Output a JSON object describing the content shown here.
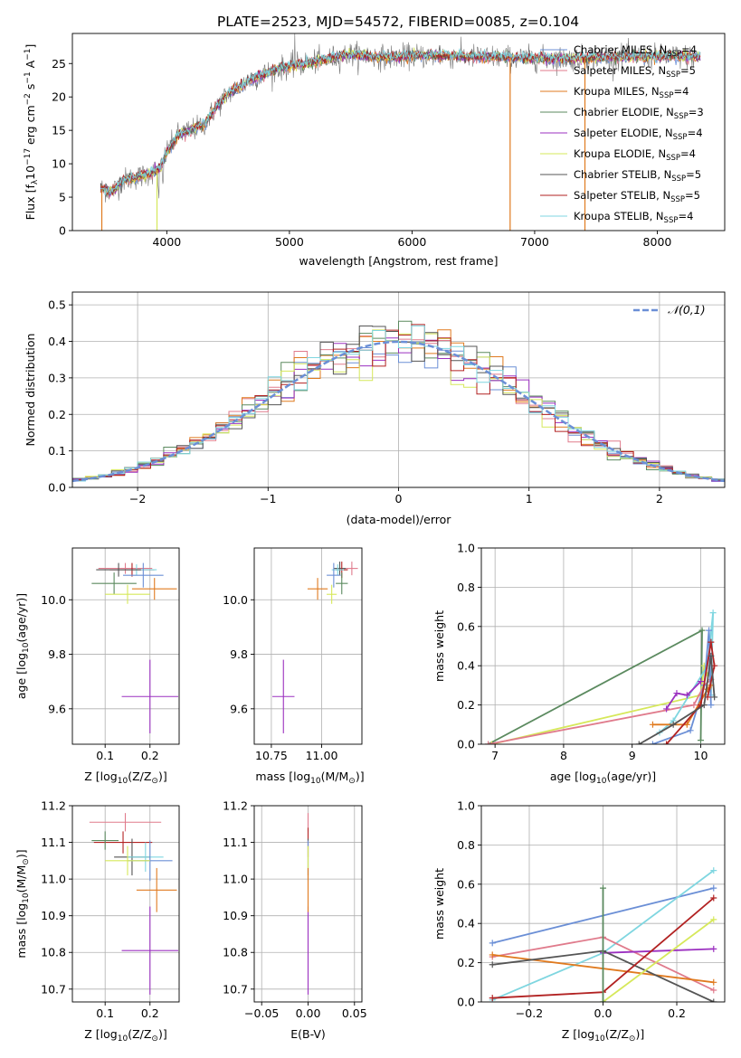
{
  "figure": {
    "title": "PLATE=2523, MJD=54572, FIBERID=0085, z=0.104"
  },
  "colors": {
    "chabrier_miles": "#6b8fd6",
    "salpeter_miles": "#e07b8c",
    "kroupa_miles": "#e07a1f",
    "chabrier_elodie": "#5b8a5f",
    "salpeter_elodie": "#9b30c0",
    "kroupa_elodie": "#d6e85a",
    "chabrier_stelib": "#555555",
    "salpeter_stelib": "#b22222",
    "kroupa_stelib": "#7fd6e0",
    "normal": "#6b8fd6",
    "grid": "#b0b0b0"
  },
  "chart_data": [
    {
      "id": "spectrum",
      "type": "line",
      "xlabel": "wavelength [Angstrom, rest frame]",
      "ylabel": "Flux [f_λ10^-17 erg cm^-2 s^-1 A^-1]",
      "xlim": [
        3230,
        8550
      ],
      "ylim": [
        0,
        29.5
      ],
      "xticks": [
        4000,
        5000,
        6000,
        7000,
        8000
      ],
      "yticks": [
        0,
        5,
        10,
        15,
        20,
        25
      ],
      "continuum": {
        "x": [
          3460,
          3550,
          3650,
          3750,
          3850,
          3950,
          4000,
          4100,
          4200,
          4300,
          4400,
          4500,
          4700,
          4900,
          5100,
          5300,
          5500,
          5800,
          6000,
          6300,
          6600,
          6900,
          7200,
          7500,
          7800,
          8100,
          8350
        ],
        "y": [
          6.3,
          5.8,
          7.6,
          7.9,
          8.5,
          9.3,
          11.8,
          14.5,
          15.0,
          15.8,
          18.4,
          20.5,
          22.7,
          24.2,
          24.9,
          25.6,
          26.4,
          25.9,
          26.2,
          26.1,
          26.0,
          25.8,
          25.7,
          25.9,
          26.0,
          26.1,
          26.0
        ]
      },
      "legend": [
        {
          "label": "Chabrier MILES, N",
          "sub": "SSP",
          "suffix": "=4"
        },
        {
          "label": "Salpeter MILES, N",
          "sub": "SSP",
          "suffix": "=5"
        },
        {
          "label": "Kroupa MILES, N",
          "sub": "SSP",
          "suffix": "=4"
        },
        {
          "label": "Chabrier ELODIE, N",
          "sub": "SSP",
          "suffix": "=3"
        },
        {
          "label": "Salpeter ELODIE, N",
          "sub": "SSP",
          "suffix": "=4"
        },
        {
          "label": "Kroupa ELODIE, N",
          "sub": "SSP",
          "suffix": "=4"
        },
        {
          "label": "Chabrier STELIB, N",
          "sub": "SSP",
          "suffix": "=5"
        },
        {
          "label": "Salpeter STELIB, N",
          "sub": "SSP",
          "suffix": "=5"
        },
        {
          "label": "Kroupa STELIB, N",
          "sub": "SSP",
          "suffix": "=4"
        }
      ]
    },
    {
      "id": "residuals",
      "type": "histogram",
      "xlabel": "(data-model)/error",
      "ylabel": "Normed distribution",
      "xlim": [
        -2.5,
        2.5
      ],
      "ylim": [
        0,
        0.535
      ],
      "xticks": [
        -2,
        -1,
        0,
        1,
        2
      ],
      "yticks": [
        0.0,
        0.1,
        0.2,
        0.3,
        0.4,
        0.5
      ],
      "legend": "𝒩(0,1)"
    },
    {
      "id": "age_vs_Z",
      "type": "errorbar",
      "xlabel": "Z [log10(Z/Z⊙)]",
      "ylabel": "age  [log10(age/yr)]",
      "xlim": [
        0.027,
        0.265
      ],
      "ylim": [
        9.47,
        10.19
      ],
      "xticks": [
        0.1,
        0.2
      ],
      "yticks": [
        9.6,
        9.8,
        10.0
      ],
      "points": [
        {
          "x": 0.2,
          "y": 9.645,
          "xerr": 0.063,
          "yerr": 0.135,
          "c": "salpeter_elodie"
        },
        {
          "x": 0.145,
          "y": 10.115,
          "xerr": 0.06,
          "yerr": 0.02,
          "c": "salpeter_miles"
        },
        {
          "x": 0.16,
          "y": 10.11,
          "xerr": 0.05,
          "yerr": 0.025,
          "c": "salpeter_stelib"
        },
        {
          "x": 0.17,
          "y": 10.11,
          "xerr": 0.045,
          "yerr": 0.02,
          "c": "kroupa_stelib"
        },
        {
          "x": 0.185,
          "y": 10.09,
          "xerr": 0.045,
          "yerr": 0.045,
          "c": "chabrier_miles"
        },
        {
          "x": 0.13,
          "y": 10.11,
          "xerr": 0.05,
          "yerr": 0.025,
          "c": "chabrier_stelib"
        },
        {
          "x": 0.12,
          "y": 10.06,
          "xerr": 0.05,
          "yerr": 0.04,
          "c": "chabrier_elodie"
        },
        {
          "x": 0.21,
          "y": 10.04,
          "xerr": 0.05,
          "yerr": 0.04,
          "c": "kroupa_miles"
        },
        {
          "x": 0.15,
          "y": 10.02,
          "xerr": 0.05,
          "yerr": 0.035,
          "c": "kroupa_elodie"
        }
      ]
    },
    {
      "id": "age_vs_mass",
      "type": "errorbar",
      "xlabel": "mass [log10(M/M⊙)]",
      "ylabel": "",
      "xlim": [
        10.665,
        11.2
      ],
      "ylim": [
        9.47,
        10.19
      ],
      "xticks": [
        10.75,
        11.0
      ],
      "xticklabels": [
        "10.75",
        "11.00"
      ],
      "yticks": [
        9.6,
        9.8,
        10.0
      ],
      "points": [
        {
          "x": 10.81,
          "y": 9.645,
          "xerr": 0.055,
          "yerr": 0.135,
          "c": "salpeter_elodie"
        },
        {
          "x": 11.15,
          "y": 10.115,
          "xerr": 0.03,
          "yerr": 0.025,
          "c": "salpeter_miles"
        },
        {
          "x": 11.09,
          "y": 10.115,
          "xerr": 0.03,
          "yerr": 0.025,
          "c": "chabrier_stelib"
        },
        {
          "x": 11.1,
          "y": 10.11,
          "xerr": 0.03,
          "yerr": 0.03,
          "c": "salpeter_stelib"
        },
        {
          "x": 11.08,
          "y": 10.11,
          "xerr": 0.03,
          "yerr": 0.02,
          "c": "kroupa_stelib"
        },
        {
          "x": 11.06,
          "y": 10.09,
          "xerr": 0.035,
          "yerr": 0.045,
          "c": "chabrier_miles"
        },
        {
          "x": 11.1,
          "y": 10.06,
          "xerr": 0.03,
          "yerr": 0.04,
          "c": "chabrier_elodie"
        },
        {
          "x": 10.98,
          "y": 10.04,
          "xerr": 0.05,
          "yerr": 0.04,
          "c": "kroupa_miles"
        },
        {
          "x": 11.05,
          "y": 10.02,
          "xerr": 0.025,
          "yerr": 0.035,
          "c": "kroupa_elodie"
        }
      ]
    },
    {
      "id": "mass_vs_Z",
      "type": "errorbar",
      "xlabel": "Z [log10(Z/Z⊙)]",
      "ylabel": "mass [log10(M/M⊙)]",
      "xlim": [
        0.027,
        0.265
      ],
      "ylim": [
        10.665,
        11.2
      ],
      "xticks": [
        0.1,
        0.2
      ],
      "yticks": [
        10.7,
        10.8,
        10.9,
        11.0,
        11.1,
        11.2
      ],
      "points": [
        {
          "x": 0.2,
          "y": 10.805,
          "xerr": 0.063,
          "yerr": 0.12,
          "c": "salpeter_elodie"
        },
        {
          "x": 0.145,
          "y": 11.155,
          "xerr": 0.08,
          "yerr": 0.025,
          "c": "salpeter_miles"
        },
        {
          "x": 0.14,
          "y": 11.1,
          "xerr": 0.065,
          "yerr": 0.03,
          "c": "salpeter_stelib"
        },
        {
          "x": 0.1,
          "y": 11.105,
          "xerr": 0.03,
          "yerr": 0.025,
          "c": "chabrier_elodie"
        },
        {
          "x": 0.16,
          "y": 11.06,
          "xerr": 0.04,
          "yerr": 0.05,
          "c": "chabrier_stelib"
        },
        {
          "x": 0.19,
          "y": 11.06,
          "xerr": 0.04,
          "yerr": 0.04,
          "c": "kroupa_stelib"
        },
        {
          "x": 0.2,
          "y": 11.05,
          "xerr": 0.05,
          "yerr": 0.055,
          "c": "chabrier_miles"
        },
        {
          "x": 0.15,
          "y": 11.05,
          "xerr": 0.05,
          "yerr": 0.04,
          "c": "kroupa_elodie"
        },
        {
          "x": 0.215,
          "y": 10.97,
          "xerr": 0.045,
          "yerr": 0.06,
          "c": "kroupa_miles"
        }
      ]
    },
    {
      "id": "mass_vs_ebv",
      "type": "errorbar",
      "xlabel": "E(B-V)",
      "ylabel": "",
      "xlim": [
        -0.058,
        0.058
      ],
      "ylim": [
        10.665,
        11.2
      ],
      "xticks": [
        -0.05,
        0.0,
        0.05
      ],
      "xticklabels": [
        "−0.05",
        "0.00",
        "0.05"
      ],
      "yticks": [
        10.7,
        10.8,
        10.9,
        11.0,
        11.1,
        11.2
      ],
      "points": [
        {
          "x": 0.0,
          "y": 10.805,
          "xerr": 0,
          "yerr": 0.12,
          "c": "salpeter_elodie"
        },
        {
          "x": 0.0,
          "y": 11.155,
          "xerr": 0,
          "yerr": 0.025,
          "c": "salpeter_miles"
        },
        {
          "x": 0.0,
          "y": 11.1,
          "xerr": 0,
          "yerr": 0.04,
          "c": "salpeter_stelib"
        },
        {
          "x": 0.0,
          "y": 11.06,
          "xerr": 0,
          "yerr": 0.05,
          "c": "chabrier_stelib"
        },
        {
          "x": 0.0,
          "y": 11.05,
          "xerr": 0,
          "yerr": 0.055,
          "c": "chabrier_miles"
        },
        {
          "x": 0.0,
          "y": 11.05,
          "xerr": 0,
          "yerr": 0.04,
          "c": "kroupa_elodie"
        },
        {
          "x": 0.0,
          "y": 10.97,
          "xerr": 0,
          "yerr": 0.06,
          "c": "kroupa_miles"
        }
      ]
    },
    {
      "id": "mass_weight_vs_age",
      "type": "line",
      "xlabel": "age  [log10(age/yr)]",
      "ylabel": "mass weight",
      "xlim": [
        6.8,
        10.35
      ],
      "ylim": [
        0,
        1.0
      ],
      "xticks": [
        7,
        8,
        9,
        10
      ],
      "yticks": [
        0.0,
        0.2,
        0.4,
        0.6,
        0.8,
        1.0
      ],
      "series": [
        {
          "c": "chabrier_elodie",
          "x": [
            6.9,
            10.02,
            10.0
          ],
          "y": [
            0.0,
            0.58,
            0.02
          ]
        },
        {
          "c": "kroupa_elodie",
          "x": [
            6.95,
            10.0,
            10.05,
            10.1
          ],
          "y": [
            0.0,
            0.25,
            0.4,
            0.35
          ]
        },
        {
          "c": "salpeter_miles",
          "x": [
            6.9,
            9.9,
            10.05,
            10.15
          ],
          "y": [
            0.0,
            0.2,
            0.3,
            0.33
          ]
        },
        {
          "c": "kroupa_stelib",
          "x": [
            9.4,
            9.6,
            10.1,
            10.18,
            10.15
          ],
          "y": [
            0.06,
            0.12,
            0.4,
            0.67,
            0.25
          ]
        },
        {
          "c": "chabrier_miles",
          "x": [
            9.3,
            9.85,
            10.05,
            10.12,
            10.15
          ],
          "y": [
            0.0,
            0.07,
            0.3,
            0.58,
            0.2
          ]
        },
        {
          "c": "kroupa_miles",
          "x": [
            9.3,
            9.8,
            10.1,
            10.15
          ],
          "y": [
            0.1,
            0.1,
            0.28,
            0.3
          ]
        },
        {
          "c": "salpeter_elodie",
          "x": [
            9.5,
            9.65,
            9.8,
            10.0
          ],
          "y": [
            0.18,
            0.26,
            0.25,
            0.32
          ]
        },
        {
          "c": "salpeter_stelib",
          "x": [
            9.5,
            10.0,
            10.15,
            10.2,
            10.1
          ],
          "y": [
            0.0,
            0.2,
            0.52,
            0.4,
            0.24
          ]
        },
        {
          "c": "chabrier_stelib",
          "x": [
            9.1,
            9.6,
            10.05,
            10.15,
            10.2
          ],
          "y": [
            0.0,
            0.1,
            0.2,
            0.45,
            0.24
          ]
        }
      ]
    },
    {
      "id": "mass_weight_vs_Z",
      "type": "line",
      "xlabel": "Z [log10(Z/Z⊙)]",
      "ylabel": "mass weight",
      "xlim": [
        -0.33,
        0.33
      ],
      "ylim": [
        0,
        1.0
      ],
      "xticks": [
        -0.2,
        0.0,
        0.2
      ],
      "xticklabels": [
        "−0.2",
        "0.0",
        "0.2"
      ],
      "yticks": [
        0.0,
        0.2,
        0.4,
        0.6,
        0.8,
        1.0
      ],
      "series": [
        {
          "c": "chabrier_miles",
          "x": [
            -0.3,
            0.3
          ],
          "y": [
            0.3,
            0.58
          ]
        },
        {
          "c": "kroupa_stelib",
          "x": [
            -0.3,
            0.0,
            0.3
          ],
          "y": [
            0.01,
            0.25,
            0.67
          ]
        },
        {
          "c": "salpeter_miles",
          "x": [
            -0.3,
            0.0,
            0.3
          ],
          "y": [
            0.23,
            0.33,
            0.06
          ]
        },
        {
          "c": "kroupa_miles",
          "x": [
            -0.3,
            0.3
          ],
          "y": [
            0.24,
            0.1
          ]
        },
        {
          "c": "salpeter_elodie",
          "x": [
            0.0,
            0.3
          ],
          "y": [
            0.25,
            0.27
          ]
        },
        {
          "c": "chabrier_stelib",
          "x": [
            -0.3,
            0.0,
            0.3
          ],
          "y": [
            0.19,
            0.26,
            0.0
          ]
        },
        {
          "c": "salpeter_stelib",
          "x": [
            -0.3,
            0.0,
            0.3
          ],
          "y": [
            0.02,
            0.05,
            0.53
          ]
        },
        {
          "c": "kroupa_elodie",
          "x": [
            0.0,
            0.3
          ],
          "y": [
            0.0,
            0.42
          ]
        },
        {
          "c": "chabrier_elodie",
          "x": [
            0.0,
            0.0
          ],
          "y": [
            0.0,
            0.58
          ]
        }
      ]
    }
  ]
}
